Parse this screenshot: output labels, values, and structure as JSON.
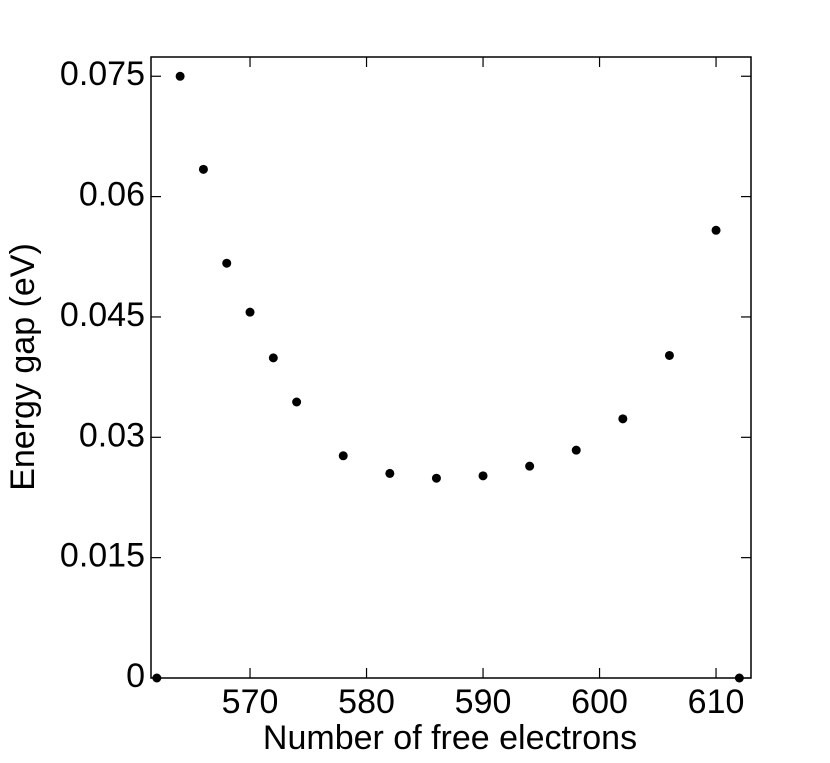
{
  "chart_data": {
    "type": "scatter",
    "x_label": "Number of free electrons",
    "y_label": "Energy gap (eV)",
    "x": [
      562,
      564,
      566,
      568,
      570,
      572,
      574,
      578,
      582,
      586,
      590,
      594,
      598,
      602,
      606,
      610,
      612
    ],
    "values": [
      0,
      0.075,
      0.0634,
      0.0517,
      0.0456,
      0.0399,
      0.0344,
      0.0277,
      0.0255,
      0.0249,
      0.0252,
      0.0264,
      0.0284,
      0.0323,
      0.0402,
      0.0558,
      0
    ],
    "color": "#000000",
    "xlim": [
      561.5,
      613
    ],
    "xticks": [
      570,
      580,
      590,
      600,
      610
    ],
    "ylim": [
      0,
      0.0774
    ],
    "yticks": [
      0,
      0.015,
      0.03,
      0.045,
      0.06,
      0.075
    ]
  }
}
